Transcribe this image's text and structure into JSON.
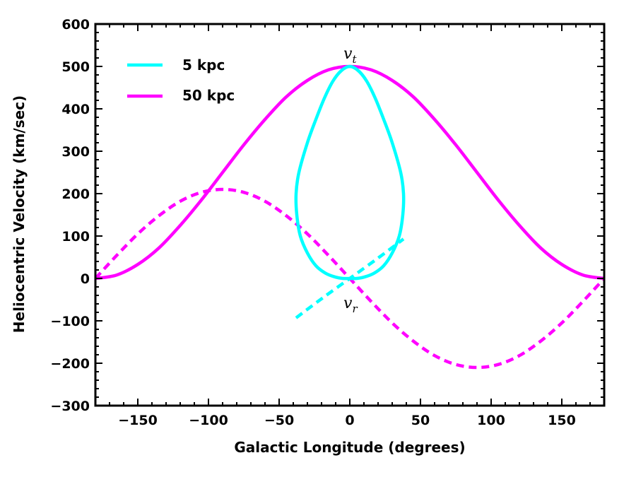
{
  "chart_data": {
    "type": "line",
    "title": "",
    "xlabel": "Galactic Longitude (degrees)",
    "ylabel": "Heliocentric Velocity (km/sec)",
    "xlim": [
      -180,
      180
    ],
    "ylim": [
      -300,
      600
    ],
    "xticks": [
      -150,
      -100,
      -50,
      0,
      50,
      100,
      150
    ],
    "yticks": [
      -300,
      -200,
      -100,
      0,
      100,
      200,
      300,
      400,
      500,
      600
    ],
    "xtick_labels": [
      "−150",
      "−100",
      "−50",
      "0",
      "50",
      "100",
      "150"
    ],
    "ytick_labels": [
      "−300",
      "−200",
      "−100",
      "0",
      "100",
      "200",
      "300",
      "400",
      "500",
      "600"
    ],
    "grid": false,
    "legend_position": "top-left",
    "legend": [
      {
        "label": "5 kpc",
        "color": "#00FFFF"
      },
      {
        "label": "50 kpc",
        "color": "#FF00FF"
      }
    ],
    "annotations": [
      {
        "base": "v",
        "sub": "t",
        "x": 0,
        "y": 500
      },
      {
        "base": "v",
        "sub": "r",
        "x": 0,
        "y": -40
      }
    ],
    "series": [
      {
        "name": "50 kpc transverse (v_t)",
        "style": "solid",
        "color": "#FF00FF",
        "x": [
          -180,
          -165,
          -150,
          -135,
          -120,
          -105,
          -90,
          -75,
          -60,
          -45,
          -30,
          -15,
          0,
          15,
          30,
          45,
          60,
          75,
          90,
          105,
          120,
          135,
          150,
          165,
          180
        ],
        "y": [
          0,
          8,
          33,
          72,
          125,
          185,
          250,
          315,
          375,
          428,
          467,
          492,
          500,
          492,
          467,
          428,
          375,
          315,
          250,
          185,
          125,
          72,
          33,
          8,
          0
        ]
      },
      {
        "name": "50 kpc radial (v_r)",
        "style": "dashed",
        "color": "#FF00FF",
        "x": [
          -180,
          -165,
          -150,
          -135,
          -120,
          -105,
          -90,
          -75,
          -60,
          -45,
          -30,
          -15,
          0,
          15,
          30,
          45,
          60,
          75,
          90,
          105,
          120,
          135,
          150,
          165,
          180
        ],
        "y": [
          0,
          54,
          105,
          148,
          182,
          203,
          210,
          203,
          182,
          148,
          105,
          54,
          0,
          -54,
          -105,
          -148,
          -182,
          -203,
          -210,
          -203,
          -182,
          -148,
          -105,
          -54,
          0
        ]
      },
      {
        "name": "5 kpc transverse (v_t)",
        "style": "solid",
        "color": "#00FFFF",
        "closed": true,
        "x": [
          0,
          6,
          12,
          18,
          24,
          30,
          36,
          38,
          37.5,
          35,
          30,
          24,
          17,
          10,
          5,
          0,
          -5,
          -10,
          -17,
          -24,
          -30,
          -35,
          -37.5,
          -38,
          -36,
          -30,
          -24,
          -18,
          -12,
          -6,
          0
        ],
        "y": [
          500,
          490,
          465,
          425,
          375,
          320,
          250,
          200,
          150,
          100,
          60,
          30,
          12,
          3,
          0,
          0,
          0,
          3,
          12,
          30,
          60,
          100,
          150,
          200,
          250,
          320,
          375,
          425,
          465,
          490,
          500
        ]
      },
      {
        "name": "5 kpc radial (v_r)",
        "style": "dashed",
        "color": "#00FFFF",
        "x": [
          -38,
          -20,
          0,
          20,
          38
        ],
        "y": [
          -93,
          -48,
          0,
          48,
          93
        ]
      }
    ]
  }
}
